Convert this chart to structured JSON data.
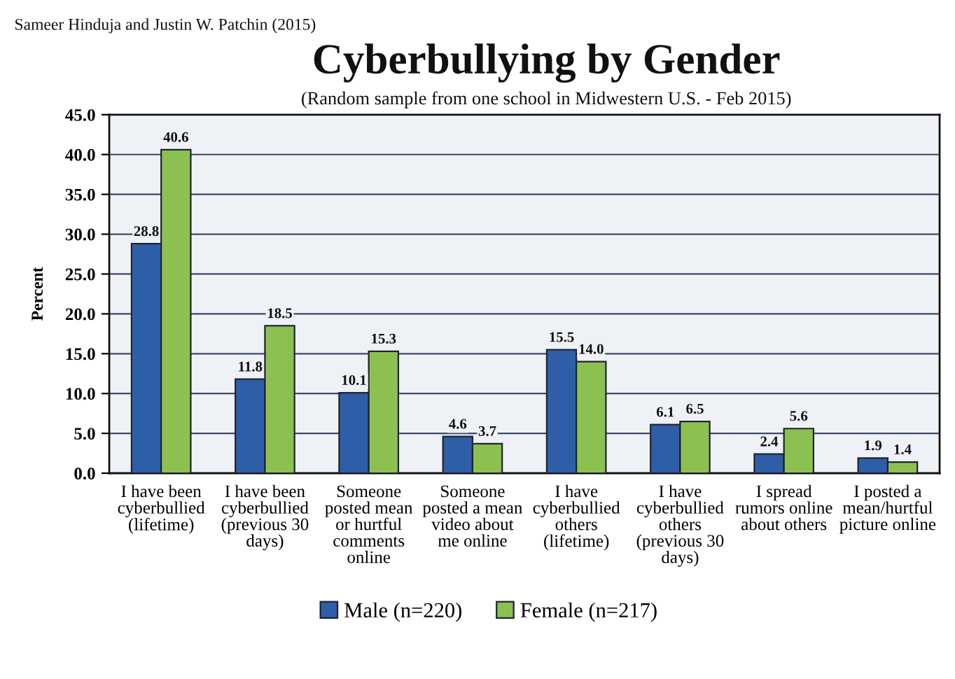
{
  "chart_data": {
    "type": "bar",
    "title": "Cyberbullying by Gender",
    "subtitle": "(Random sample from one school in Midwestern U.S. - Feb 2015)",
    "ylabel": "Percent",
    "annotations": [
      "Sameer Hinduja and Justin W. Patchin (2015)"
    ],
    "categories": [
      "I have been cyberbullied (lifetime)",
      "I have been cyberbullied (previous 30 days)",
      "Someone posted mean or hurtful comments online",
      "Someone posted a mean video about me online",
      "I have cyberbullied others (lifetime)",
      "I have cyberbullied others (previous 30 days)",
      "I spread rumors online about others",
      "I posted a mean/hurtful picture online"
    ],
    "series": [
      {
        "name": "Male (n=220)",
        "color": "#2f5ea8",
        "values": [
          28.8,
          11.8,
          10.1,
          4.6,
          15.5,
          6.1,
          2.4,
          1.9
        ],
        "value_labels": [
          "28.8",
          "11.8",
          "10.1",
          "4.6",
          "15.5",
          "6.1",
          "2.4",
          "1.9"
        ]
      },
      {
        "name": "Female (n=217)",
        "color": "#8cc152",
        "values": [
          40.6,
          18.5,
          15.3,
          3.7,
          14.0,
          6.5,
          5.6,
          1.4
        ],
        "value_labels": [
          "40.6",
          "18.5",
          "15.3",
          "3.7",
          "14.0",
          "6.5",
          "5.6",
          "1.4"
        ]
      }
    ],
    "ylim": [
      0,
      45
    ],
    "yticks": [
      {
        "value": 0,
        "label": "0.0"
      },
      {
        "value": 5,
        "label": "5.0"
      },
      {
        "value": 10,
        "label": "10.0"
      },
      {
        "value": 15,
        "label": "15.0"
      },
      {
        "value": 20,
        "label": "20.0"
      },
      {
        "value": 25,
        "label": "25.0"
      },
      {
        "value": 30,
        "label": "30.0"
      },
      {
        "value": 35,
        "label": "35.0"
      },
      {
        "value": 40,
        "label": "40.0"
      },
      {
        "value": 45,
        "label": "45.0"
      }
    ],
    "grid": "y",
    "legend": "bottom"
  }
}
